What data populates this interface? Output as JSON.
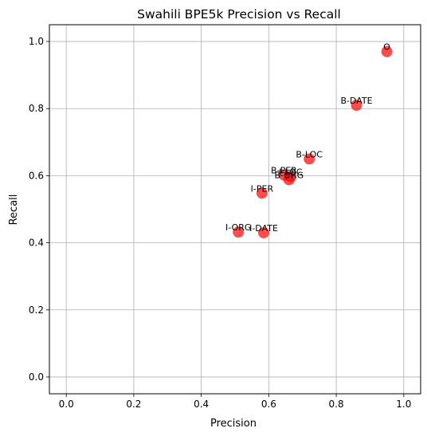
{
  "chart_data": {
    "type": "scatter",
    "title": "Swahili BPE5k Precision vs Recall",
    "xlabel": "Precision",
    "ylabel": "Recall",
    "xlim": [
      -0.05,
      1.05
    ],
    "ylim": [
      -0.05,
      1.05
    ],
    "xticks": [
      "0.0",
      "0.2",
      "0.4",
      "0.6",
      "0.8",
      "1.0"
    ],
    "yticks": [
      "0.0",
      "0.2",
      "0.4",
      "0.6",
      "0.8",
      "1.0"
    ],
    "grid": true,
    "marker_color": "#ff0000",
    "points": [
      {
        "label": "O",
        "x": 0.95,
        "y": 0.97
      },
      {
        "label": "B-DATE",
        "x": 0.86,
        "y": 0.81
      },
      {
        "label": "B-LOC",
        "x": 0.72,
        "y": 0.65
      },
      {
        "label": "B-PER",
        "x": 0.645,
        "y": 0.602
      },
      {
        "label": "I-LOC",
        "x": 0.665,
        "y": 0.597
      },
      {
        "label": "B-ORG",
        "x": 0.66,
        "y": 0.588
      },
      {
        "label": "I-PER",
        "x": 0.58,
        "y": 0.548
      },
      {
        "label": "I-ORG",
        "x": 0.51,
        "y": 0.432
      },
      {
        "label": "I-DATE",
        "x": 0.585,
        "y": 0.43
      }
    ]
  }
}
